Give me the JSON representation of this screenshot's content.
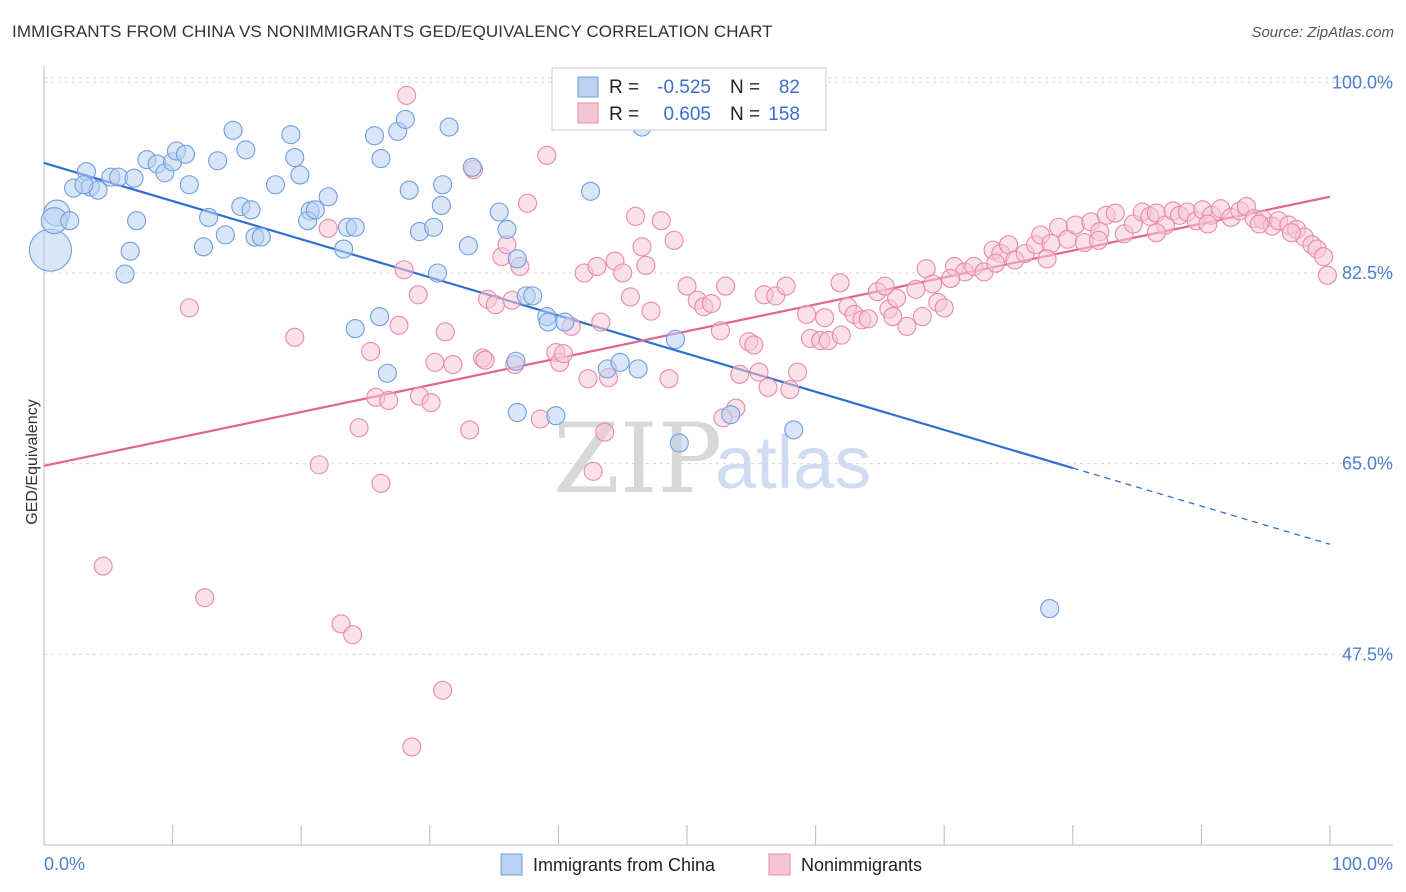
{
  "title": "IMMIGRANTS FROM CHINA VS NONIMMIGRANTS GED/EQUIVALENCY CORRELATION CHART",
  "source": "Source: ZipAtlas.com",
  "watermark": {
    "part1": "ZIP",
    "part2": "atlas"
  },
  "colors": {
    "blue": "#6f9de0",
    "blue_fill": "#b9d1f3",
    "blue_line": "#2f6fd0",
    "pink": "#e98aa8",
    "pink_fill": "#f6c6d5",
    "pink_line": "#e06590",
    "tick_text": "#4a7fd0",
    "grid": "#d8d8d8"
  },
  "stats": [
    {
      "series": "Immigrants from China",
      "r_label": "R =",
      "r": "-0.525",
      "n_label": "N =",
      "n": "82"
    },
    {
      "series": "Nonimmigrants",
      "r_label": "R =",
      "r": "0.605",
      "n_label": "N =",
      "n": "158"
    }
  ],
  "chart_data": {
    "type": "scatter",
    "title": "IMMIGRANTS FROM CHINA VS NONIMMIGRANTS GED/EQUIVALENCY CORRELATION CHART",
    "xlabel": "",
    "ylabel": "GED/Equivalency",
    "xlim": [
      0,
      100
    ],
    "ylim": [
      30,
      101.5
    ],
    "x_tick_labels": [
      "0.0%",
      "100.0%"
    ],
    "y_ticks": [
      47.5,
      65.0,
      82.5,
      100.0
    ],
    "y_tick_labels": [
      "47.5%",
      "65.0%",
      "82.5%",
      "100.0%"
    ],
    "grid": "horizontal dashed",
    "legend": "bottom-center",
    "series": [
      {
        "name": "Immigrants from China",
        "color": "#6f9de0",
        "trend": {
          "x0": 0,
          "y0": 92.6,
          "x1": 80,
          "y1": 64.6,
          "dash_to_x": 100,
          "dash_to_y": 57.6
        },
        "points": [
          [
            0.5,
            84.6,
            3
          ],
          [
            1.0,
            88.0,
            2
          ],
          [
            0.8,
            87.3,
            2
          ],
          [
            2.0,
            87.3,
            1
          ],
          [
            2.3,
            90.3,
            1
          ],
          [
            3.3,
            91.8,
            1
          ],
          [
            3.6,
            90.4,
            1
          ],
          [
            4.2,
            90.1,
            1
          ],
          [
            5.2,
            91.3,
            1
          ],
          [
            3.1,
            90.6,
            1
          ],
          [
            5.8,
            91.3,
            1
          ],
          [
            7.0,
            91.2,
            1
          ],
          [
            7.2,
            87.3,
            1
          ],
          [
            6.3,
            82.4,
            1
          ],
          [
            6.7,
            84.5,
            1
          ],
          [
            8.0,
            92.9,
            1
          ],
          [
            8.8,
            92.5,
            1
          ],
          [
            9.4,
            91.7,
            1
          ],
          [
            10.0,
            92.7,
            1
          ],
          [
            10.3,
            93.7,
            1
          ],
          [
            11.0,
            93.4,
            1
          ],
          [
            11.3,
            90.6,
            1
          ],
          [
            12.4,
            84.9,
            1
          ],
          [
            12.8,
            87.6,
            1
          ],
          [
            13.5,
            92.8,
            1
          ],
          [
            14.1,
            86.0,
            1
          ],
          [
            14.7,
            95.6,
            1
          ],
          [
            15.3,
            88.6,
            1
          ],
          [
            15.7,
            93.8,
            1
          ],
          [
            16.1,
            88.3,
            1
          ],
          [
            16.4,
            85.8,
            1
          ],
          [
            16.9,
            85.8,
            1
          ],
          [
            18.0,
            90.6,
            1
          ],
          [
            19.2,
            95.2,
            1
          ],
          [
            19.5,
            93.1,
            1
          ],
          [
            19.9,
            91.5,
            1
          ],
          [
            20.7,
            88.2,
            1
          ],
          [
            20.5,
            87.3,
            1
          ],
          [
            21.1,
            88.3,
            1
          ],
          [
            22.1,
            89.5,
            1
          ],
          [
            23.3,
            84.7,
            1
          ],
          [
            23.6,
            86.7,
            1
          ],
          [
            24.2,
            77.4,
            1
          ],
          [
            24.2,
            86.7,
            1
          ],
          [
            25.7,
            95.1,
            1
          ],
          [
            26.2,
            93.0,
            1
          ],
          [
            26.1,
            78.5,
            1
          ],
          [
            26.7,
            73.3,
            1
          ],
          [
            27.5,
            95.5,
            1
          ],
          [
            28.1,
            96.6,
            1
          ],
          [
            28.4,
            90.1,
            1
          ],
          [
            29.2,
            86.3,
            1
          ],
          [
            30.3,
            86.7,
            1
          ],
          [
            30.6,
            82.5,
            1
          ],
          [
            30.9,
            88.7,
            1
          ],
          [
            31.0,
            90.6,
            1
          ],
          [
            31.5,
            95.9,
            1
          ],
          [
            33.0,
            85.0,
            1
          ],
          [
            33.3,
            92.2,
            1
          ],
          [
            35.4,
            88.1,
            1
          ],
          [
            36.0,
            86.5,
            1
          ],
          [
            36.8,
            83.8,
            1
          ],
          [
            36.7,
            74.4,
            1
          ],
          [
            36.8,
            69.7,
            1
          ],
          [
            37.5,
            80.4,
            1
          ],
          [
            38.0,
            80.4,
            1
          ],
          [
            39.1,
            78.5,
            1
          ],
          [
            39.2,
            78.0,
            1
          ],
          [
            39.8,
            69.4,
            1
          ],
          [
            40.5,
            78.0,
            1
          ],
          [
            42.5,
            90.0,
            1
          ],
          [
            43.8,
            73.7,
            1
          ],
          [
            44.8,
            74.3,
            1
          ],
          [
            46.2,
            73.7,
            1
          ],
          [
            46.5,
            95.9,
            1
          ],
          [
            46.5,
            99.1,
            1
          ],
          [
            47.8,
            99.8,
            1
          ],
          [
            49.1,
            76.4,
            1
          ],
          [
            49.4,
            66.9,
            1
          ],
          [
            53.4,
            69.5,
            1
          ],
          [
            58.3,
            68.1,
            1
          ],
          [
            78.2,
            51.7,
            1
          ]
        ]
      },
      {
        "name": "Nonimmigrants",
        "color": "#e98aa8",
        "trend": {
          "x0": 0,
          "y0": 64.8,
          "x1": 100,
          "y1": 89.5
        },
        "points": [
          [
            4.6,
            55.6,
            1
          ],
          [
            11.3,
            79.3,
            1
          ],
          [
            12.5,
            52.7,
            1
          ],
          [
            19.5,
            76.6,
            1
          ],
          [
            21.4,
            64.9,
            1
          ],
          [
            22.1,
            86.6,
            1
          ],
          [
            23.1,
            50.3,
            1
          ],
          [
            24.0,
            49.3,
            1
          ],
          [
            24.5,
            68.3,
            1
          ],
          [
            25.4,
            75.3,
            1
          ],
          [
            25.8,
            71.1,
            1
          ],
          [
            26.2,
            63.2,
            1
          ],
          [
            26.8,
            70.8,
            1
          ],
          [
            27.6,
            77.7,
            1
          ],
          [
            28.0,
            82.8,
            1
          ],
          [
            28.2,
            98.8,
            1
          ],
          [
            28.6,
            39.0,
            1
          ],
          [
            29.1,
            80.5,
            1
          ],
          [
            29.2,
            71.2,
            1
          ],
          [
            30.1,
            70.6,
            1
          ],
          [
            30.4,
            74.3,
            1
          ],
          [
            31.0,
            44.2,
            1
          ],
          [
            31.2,
            77.1,
            1
          ],
          [
            31.8,
            74.1,
            1
          ],
          [
            33.1,
            68.1,
            1
          ],
          [
            33.4,
            92.0,
            1
          ],
          [
            34.1,
            74.7,
            1
          ],
          [
            34.3,
            74.5,
            1
          ],
          [
            34.5,
            80.1,
            1
          ],
          [
            35.1,
            79.6,
            1
          ],
          [
            35.6,
            84.0,
            1
          ],
          [
            36.0,
            85.1,
            1
          ],
          [
            36.4,
            80.0,
            1
          ],
          [
            36.6,
            74.1,
            1
          ],
          [
            37.0,
            83.1,
            1
          ],
          [
            37.6,
            88.9,
            1
          ],
          [
            38.6,
            69.1,
            1
          ],
          [
            39.1,
            93.3,
            1
          ],
          [
            39.8,
            75.2,
            1
          ],
          [
            40.1,
            74.3,
            1
          ],
          [
            40.4,
            75.1,
            1
          ],
          [
            41.0,
            77.6,
            1
          ],
          [
            42.0,
            82.5,
            1
          ],
          [
            42.3,
            72.8,
            1
          ],
          [
            42.7,
            64.3,
            1
          ],
          [
            43.0,
            83.1,
            1
          ],
          [
            43.3,
            78.0,
            1
          ],
          [
            43.6,
            67.9,
            1
          ],
          [
            43.9,
            72.9,
            1
          ],
          [
            44.4,
            83.6,
            1
          ],
          [
            45.0,
            82.5,
            1
          ],
          [
            45.6,
            80.3,
            1
          ],
          [
            46.0,
            87.7,
            1
          ],
          [
            46.8,
            83.2,
            1
          ],
          [
            47.2,
            79.0,
            1
          ],
          [
            48.0,
            87.3,
            1
          ],
          [
            49.0,
            85.5,
            1
          ],
          [
            50.0,
            81.3,
            1
          ],
          [
            50.8,
            80.0,
            1
          ],
          [
            51.3,
            79.4,
            1
          ],
          [
            51.9,
            79.7,
            1
          ],
          [
            52.6,
            77.2,
            1
          ],
          [
            53.0,
            81.3,
            1
          ],
          [
            53.8,
            70.1,
            1
          ],
          [
            54.1,
            73.2,
            1
          ],
          [
            54.8,
            76.2,
            1
          ],
          [
            55.2,
            75.9,
            1
          ],
          [
            55.6,
            73.4,
            1
          ],
          [
            56.0,
            80.5,
            1
          ],
          [
            56.3,
            72.0,
            1
          ],
          [
            56.9,
            80.4,
            1
          ],
          [
            57.7,
            81.3,
            1
          ],
          [
            58.6,
            73.4,
            1
          ],
          [
            59.3,
            78.7,
            1
          ],
          [
            59.6,
            76.5,
            1
          ],
          [
            60.4,
            76.3,
            1
          ],
          [
            60.7,
            78.4,
            1
          ],
          [
            61.0,
            76.3,
            1
          ],
          [
            61.9,
            81.6,
            1
          ],
          [
            62.5,
            79.4,
            1
          ],
          [
            63.0,
            78.7,
            1
          ],
          [
            63.6,
            78.2,
            1
          ],
          [
            64.1,
            78.3,
            1
          ],
          [
            64.8,
            80.8,
            1
          ],
          [
            65.4,
            81.3,
            1
          ],
          [
            65.7,
            79.2,
            1
          ],
          [
            66.3,
            80.2,
            1
          ],
          [
            67.1,
            77.6,
            1
          ],
          [
            67.8,
            81.0,
            1
          ],
          [
            68.3,
            78.5,
            1
          ],
          [
            68.6,
            82.9,
            1
          ],
          [
            69.1,
            81.5,
            1
          ],
          [
            69.5,
            79.8,
            1
          ],
          [
            70.0,
            79.3,
            1
          ],
          [
            70.8,
            83.1,
            1
          ],
          [
            71.6,
            82.6,
            1
          ],
          [
            72.3,
            83.1,
            1
          ],
          [
            73.1,
            82.6,
            1
          ],
          [
            73.8,
            84.6,
            1
          ],
          [
            74.4,
            84.3,
            1
          ],
          [
            75.0,
            85.1,
            1
          ],
          [
            75.5,
            83.7,
            1
          ],
          [
            76.3,
            84.3,
            1
          ],
          [
            77.1,
            85.1,
            1
          ],
          [
            77.5,
            86.0,
            1
          ],
          [
            78.3,
            85.2,
            1
          ],
          [
            78.9,
            86.7,
            1
          ],
          [
            79.6,
            85.6,
            1
          ],
          [
            80.2,
            86.9,
            1
          ],
          [
            80.9,
            85.3,
            1
          ],
          [
            81.4,
            87.2,
            1
          ],
          [
            82.1,
            86.3,
            1
          ],
          [
            82.6,
            87.8,
            1
          ],
          [
            83.3,
            88.0,
            1
          ],
          [
            84.0,
            86.1,
            1
          ],
          [
            84.7,
            87.0,
            1
          ],
          [
            85.4,
            88.1,
            1
          ],
          [
            86.0,
            87.7,
            1
          ],
          [
            86.5,
            88.0,
            1
          ],
          [
            87.2,
            86.9,
            1
          ],
          [
            87.8,
            88.2,
            1
          ],
          [
            88.3,
            87.8,
            1
          ],
          [
            88.9,
            88.1,
            1
          ],
          [
            89.6,
            87.3,
            1
          ],
          [
            90.1,
            88.3,
            1
          ],
          [
            90.8,
            87.8,
            1
          ],
          [
            91.5,
            88.4,
            1
          ],
          [
            92.3,
            87.6,
            1
          ],
          [
            93.0,
            88.2,
            1
          ],
          [
            93.5,
            88.6,
            1
          ],
          [
            94.1,
            87.5,
            1
          ],
          [
            94.8,
            87.4,
            1
          ],
          [
            95.5,
            86.8,
            1
          ],
          [
            96.0,
            87.3,
            1
          ],
          [
            96.8,
            86.9,
            1
          ],
          [
            97.4,
            86.5,
            1
          ],
          [
            98.0,
            85.8,
            1
          ],
          [
            98.6,
            85.1,
            1
          ],
          [
            99.0,
            84.7,
            1
          ],
          [
            99.5,
            84.0,
            1
          ],
          [
            99.8,
            82.3,
            1
          ],
          [
            46.5,
            84.9,
            1
          ],
          [
            48.6,
            72.8,
            1
          ],
          [
            52.8,
            69.2,
            1
          ],
          [
            58.0,
            71.8,
            1
          ],
          [
            62.0,
            76.8,
            1
          ],
          [
            66.0,
            78.5,
            1
          ],
          [
            70.5,
            82.0,
            1
          ],
          [
            74.0,
            83.4,
            1
          ],
          [
            78.0,
            83.8,
            1
          ],
          [
            82.0,
            85.5,
            1
          ],
          [
            86.5,
            86.2,
            1
          ],
          [
            90.5,
            87.0,
            1
          ],
          [
            94.5,
            87.0,
            1
          ],
          [
            97.0,
            86.2,
            1
          ]
        ]
      }
    ]
  }
}
